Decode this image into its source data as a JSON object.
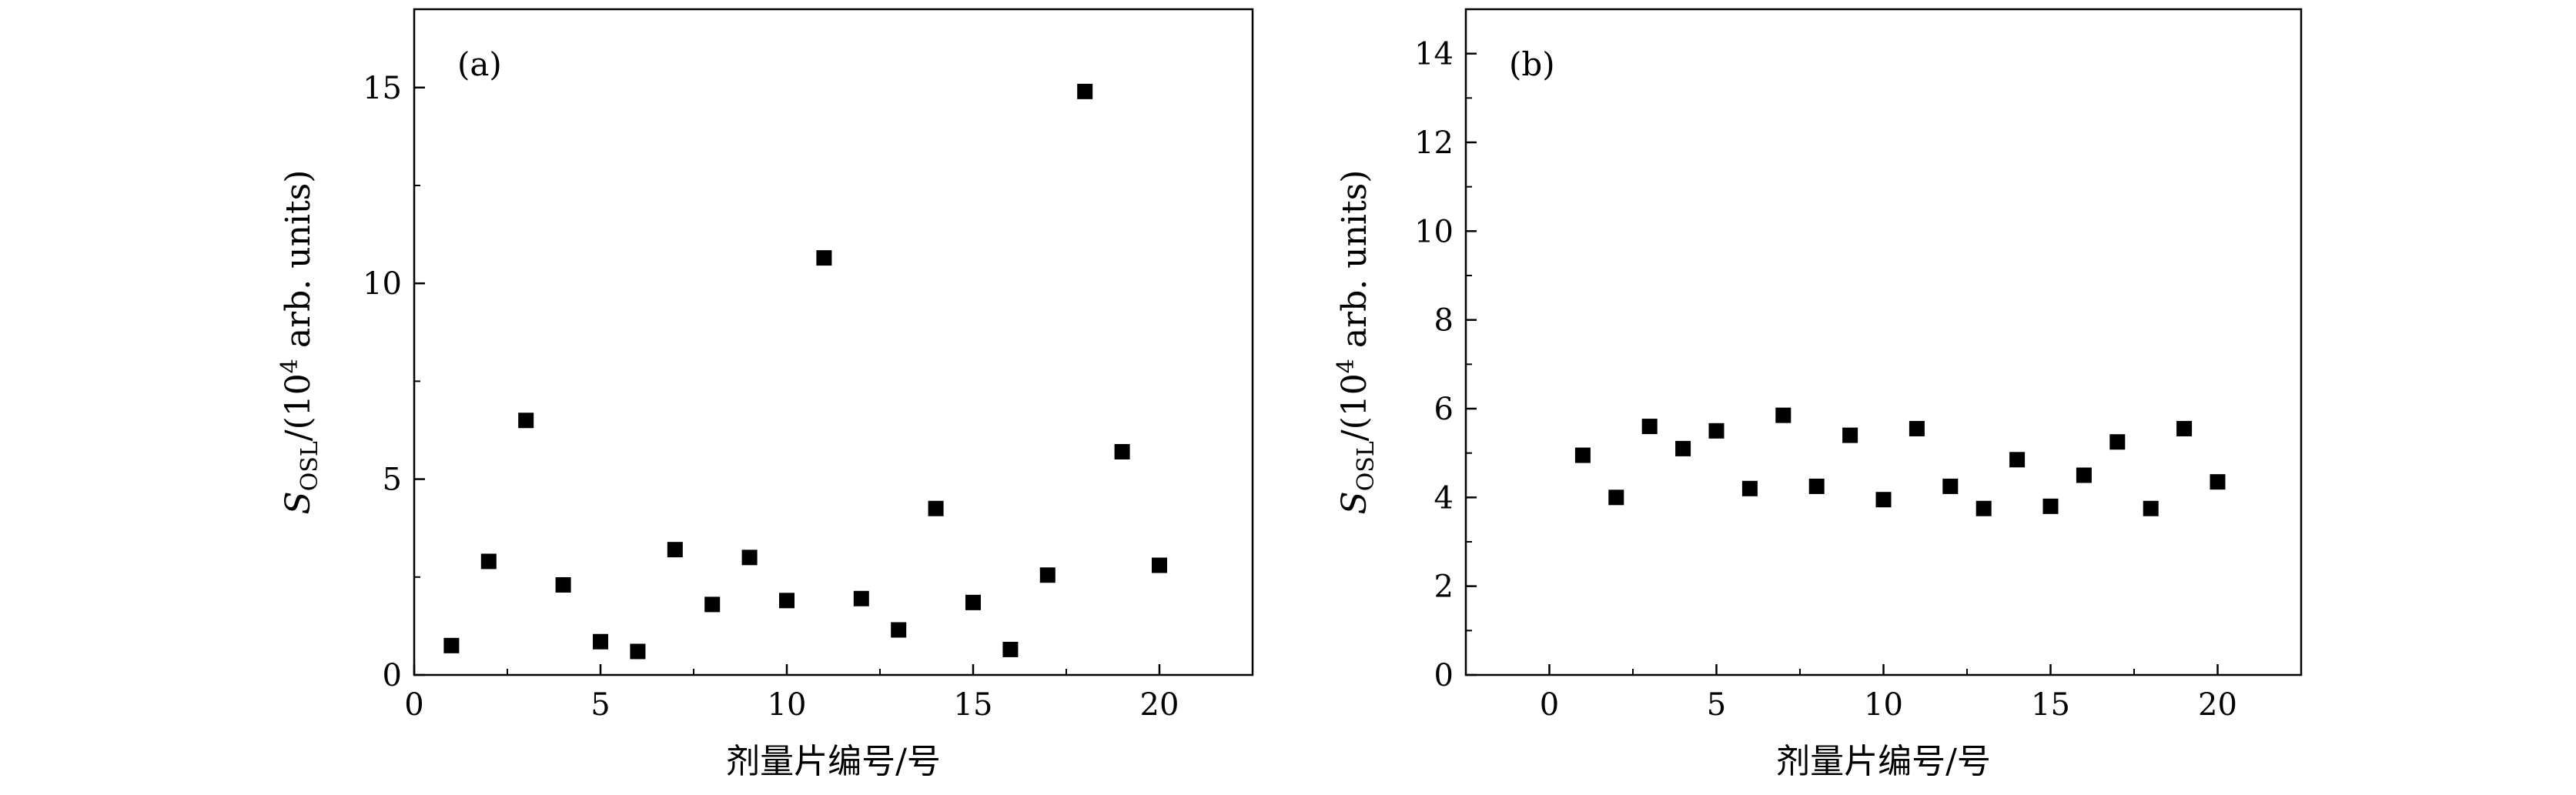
{
  "chart_data": [
    {
      "type": "scatter",
      "panel_label": "(a)",
      "xlabel": "剂量片编号/号",
      "ylabel": "S_OSL/(10^4 arb. units)",
      "ylabel_parts": {
        "symbol": "S",
        "sub": "OSL",
        "rest": "/(10",
        "sup": "4",
        "tail": " arb. units)"
      },
      "xlim": [
        0,
        22.5
      ],
      "ylim": [
        0,
        17
      ],
      "xticks": [
        0,
        5,
        10,
        15,
        20
      ],
      "yticks": [
        0,
        5,
        10,
        15
      ],
      "x": [
        1,
        2,
        3,
        4,
        5,
        6,
        7,
        8,
        9,
        10,
        11,
        12,
        13,
        14,
        15,
        16,
        17,
        18,
        19,
        20
      ],
      "y": [
        0.75,
        2.9,
        6.5,
        2.3,
        0.85,
        0.6,
        3.2,
        1.8,
        3.0,
        1.9,
        10.65,
        1.95,
        1.15,
        4.25,
        1.85,
        0.65,
        2.55,
        14.9,
        5.7,
        2.8
      ],
      "marker": "square",
      "color": "#000000",
      "grid": false
    },
    {
      "type": "scatter",
      "panel_label": "(b)",
      "xlabel": "剂量片编号/号",
      "ylabel": "S_OSL/(10^4 arb. units)",
      "ylabel_parts": {
        "symbol": "S",
        "sub": "OSL",
        "rest": "/(10",
        "sup": "4",
        "tail": " arb. units)"
      },
      "xlim": [
        -2.5,
        22.5
      ],
      "ylim": [
        0,
        15
      ],
      "xticks": [
        0,
        5,
        10,
        15,
        20
      ],
      "yticks": [
        0,
        2,
        4,
        6,
        8,
        10,
        12,
        14
      ],
      "x": [
        1,
        2,
        3,
        4,
        5,
        6,
        7,
        8,
        9,
        10,
        11,
        12,
        13,
        14,
        15,
        16,
        17,
        18,
        19,
        20
      ],
      "y": [
        4.95,
        4.0,
        5.6,
        5.1,
        5.5,
        4.2,
        5.85,
        4.25,
        5.4,
        3.95,
        5.55,
        4.25,
        3.75,
        4.85,
        3.8,
        4.5,
        5.25,
        3.75,
        5.55,
        4.35
      ],
      "marker": "square",
      "color": "#000000",
      "grid": false
    }
  ]
}
